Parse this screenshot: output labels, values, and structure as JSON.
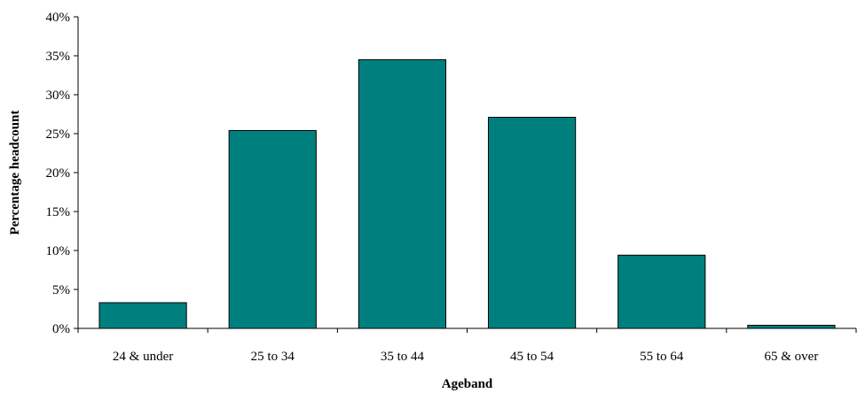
{
  "chart_data": {
    "type": "bar",
    "title": "",
    "xlabel": "Ageband",
    "ylabel": "Percentage headcount",
    "categories": [
      "24 & under",
      "25 to 34",
      "35 to 44",
      "45 to 54",
      "55 to 64",
      "65 & over"
    ],
    "values": [
      3.3,
      25.4,
      34.5,
      27.1,
      9.4,
      0.4
    ],
    "ylim": [
      0,
      40
    ],
    "yticks": [
      0,
      5,
      10,
      15,
      20,
      25,
      30,
      35,
      40
    ],
    "ytick_labels": [
      "0%",
      "5%",
      "10%",
      "15%",
      "20%",
      "25%",
      "30%",
      "35%",
      "40%"
    ],
    "grid": false,
    "legend": "none",
    "colors": {
      "bar_fill": "#007F7F",
      "bar_stroke": "#000000"
    }
  }
}
